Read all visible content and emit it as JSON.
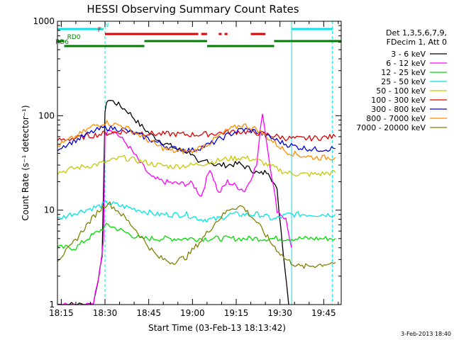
{
  "chart_data": {
    "type": "line",
    "title": "HESSI Observing Summary Count Rates",
    "xlabel": "Start Time (03-Feb-13 18:13:42)",
    "ylabel": "Count Rate (s⁻¹ detector⁻¹)",
    "yscale": "log",
    "ylim": [
      1,
      1000
    ],
    "xlim": [
      "18:13:42",
      "19:51:00"
    ],
    "x_ticks": [
      "18:15",
      "18:30",
      "18:45",
      "19:00",
      "19:15",
      "19:30",
      "19:45"
    ],
    "y_ticks": [
      "1",
      "10",
      "100",
      "1000"
    ],
    "legend_header": [
      "Det 1,3,5,6,7,9,",
      "FDecim 1, Att 0"
    ],
    "legend_placement": "right",
    "footer_date": "3-Feb-2013 18:40",
    "grid": false,
    "vertical_markers": [
      {
        "time": "18:13:42",
        "style": "solid",
        "color": "#00e5e5"
      },
      {
        "time": "18:30:00",
        "style": "dashed",
        "color": "#00e5e5"
      },
      {
        "time": "19:34:00",
        "style": "solid",
        "color": "#00e5e5"
      },
      {
        "time": "19:48:00",
        "style": "dashed",
        "color": "#00e5e5"
      }
    ],
    "flag_bars": [
      {
        "name": "N",
        "color": "#00e5e5",
        "segments": [
          [
            "18:13:42",
            "18:29:30"
          ],
          [
            "19:34:00",
            "19:48:00"
          ]
        ],
        "label_time": "18:29:40"
      },
      {
        "name": "F",
        "color": "#e00000",
        "segments": [
          [
            "18:30:00",
            "19:02:00"
          ],
          [
            "19:03:00",
            "19:05:00"
          ],
          [
            "19:09:00",
            "19:10:00"
          ],
          [
            "19:11:00",
            "19:12:00"
          ],
          [
            "19:20:00",
            "19:25:00"
          ]
        ],
        "label_time": "18:27:30"
      },
      {
        "name": "RD0",
        "color": "#007f00",
        "segments": [
          [
            "18:13:42",
            "18:16:00"
          ],
          [
            "18:43:30",
            "19:05:00"
          ],
          [
            "19:28:00",
            "19:51:00"
          ]
        ],
        "label_time": "18:17:00"
      },
      {
        "name": "RD6",
        "color": "#007f00",
        "segments": [
          [
            "18:16:00",
            "18:43:30"
          ],
          [
            "19:05:00",
            "19:28:00"
          ]
        ],
        "label_time": "18:13:00"
      }
    ],
    "series": [
      {
        "name": "3 - 6 keV",
        "color": "#000000",
        "points": [
          [
            "18:13:42",
            1
          ],
          [
            "18:26:00",
            1
          ],
          [
            "18:27:00",
            1.5
          ],
          [
            "18:29:00",
            3
          ],
          [
            "18:30:00",
            110
          ],
          [
            "18:31:00",
            150
          ],
          [
            "18:34:00",
            135
          ],
          [
            "18:38:00",
            110
          ],
          [
            "18:42:00",
            80
          ],
          [
            "18:46:00",
            62
          ],
          [
            "18:50:00",
            52
          ],
          [
            "18:55:00",
            44
          ],
          [
            "19:00:00",
            40
          ],
          [
            "19:02:00",
            30
          ],
          [
            "19:05:00",
            34
          ],
          [
            "19:08:00",
            30
          ],
          [
            "19:12:00",
            30
          ],
          [
            "19:16:00",
            31
          ],
          [
            "19:20:00",
            27
          ],
          [
            "19:23:00",
            24
          ],
          [
            "19:26:00",
            26
          ],
          [
            "19:29:00",
            16
          ],
          [
            "19:31:00",
            4
          ],
          [
            "19:33:00",
            1
          ]
        ]
      },
      {
        "name": "6 - 12 keV",
        "color": "#ff00ff",
        "points": [
          [
            "18:13:42",
            1
          ],
          [
            "18:26:00",
            1
          ],
          [
            "18:28:00",
            2
          ],
          [
            "18:29:30",
            5
          ],
          [
            "18:30:00",
            60
          ],
          [
            "18:31:00",
            75
          ],
          [
            "18:34:00",
            65
          ],
          [
            "18:38:00",
            48
          ],
          [
            "18:42:00",
            32
          ],
          [
            "18:46:00",
            22
          ],
          [
            "18:50:00",
            20
          ],
          [
            "18:55:00",
            19
          ],
          [
            "19:00:00",
            19
          ],
          [
            "19:03:00",
            14
          ],
          [
            "19:06:00",
            28
          ],
          [
            "19:09:00",
            15
          ],
          [
            "19:12:00",
            20
          ],
          [
            "19:15:00",
            18
          ],
          [
            "19:18:00",
            16
          ],
          [
            "19:22:00",
            30
          ],
          [
            "19:24:00",
            110
          ],
          [
            "19:26:00",
            40
          ],
          [
            "19:29:00",
            10
          ],
          [
            "19:32:00",
            8
          ],
          [
            "19:34:00",
            4
          ]
        ]
      },
      {
        "name": "12 - 25 keV",
        "color": "#00dd00",
        "points": [
          [
            "18:13:42",
            4
          ],
          [
            "18:20:00",
            4
          ],
          [
            "18:24:00",
            5
          ],
          [
            "18:28:00",
            6
          ],
          [
            "18:31:00",
            7
          ],
          [
            "18:36:00",
            6
          ],
          [
            "18:42:00",
            5
          ],
          [
            "18:48:00",
            5
          ],
          [
            "18:55:00",
            5
          ],
          [
            "19:05:00",
            5
          ],
          [
            "19:10:00",
            5
          ],
          [
            "19:20:00",
            5
          ],
          [
            "19:30:00",
            5
          ],
          [
            "19:38:00",
            5
          ],
          [
            "19:45:00",
            5
          ],
          [
            "19:49:00",
            5
          ]
        ]
      },
      {
        "name": "25 - 50 keV",
        "color": "#00e5e5",
        "points": [
          [
            "18:13:42",
            8
          ],
          [
            "18:18:00",
            9
          ],
          [
            "18:23:00",
            10
          ],
          [
            "18:28:00",
            11
          ],
          [
            "18:31:00",
            12
          ],
          [
            "18:36:00",
            11
          ],
          [
            "18:42:00",
            10
          ],
          [
            "18:48:00",
            9
          ],
          [
            "18:53:00",
            9
          ],
          [
            "18:58:00",
            9
          ],
          [
            "19:03:00",
            8
          ],
          [
            "19:08:00",
            8
          ],
          [
            "19:13:00",
            9
          ],
          [
            "19:18:00",
            9
          ],
          [
            "19:23:00",
            9
          ],
          [
            "19:28:00",
            8
          ],
          [
            "19:33:00",
            9
          ],
          [
            "19:40:00",
            9
          ],
          [
            "19:49:00",
            9
          ]
        ]
      },
      {
        "name": "50 - 100 keV",
        "color": "#c8c800",
        "points": [
          [
            "18:13:42",
            25
          ],
          [
            "18:20:00",
            28
          ],
          [
            "18:26:00",
            30
          ],
          [
            "18:30:00",
            32
          ],
          [
            "18:36:00",
            36
          ],
          [
            "18:42:00",
            33
          ],
          [
            "18:48:00",
            30
          ],
          [
            "18:53:00",
            29
          ],
          [
            "19:00:00",
            30
          ],
          [
            "19:06:00",
            32
          ],
          [
            "19:12:00",
            35
          ],
          [
            "19:17:00",
            36
          ],
          [
            "19:22:00",
            34
          ],
          [
            "19:27:00",
            29
          ],
          [
            "19:32:00",
            25
          ],
          [
            "19:37:00",
            24
          ],
          [
            "19:42:00",
            24
          ],
          [
            "19:49:00",
            25
          ]
        ]
      },
      {
        "name": "100 - 300 keV",
        "color": "#e00000",
        "points": [
          [
            "18:13:42",
            55
          ],
          [
            "18:20:00",
            58
          ],
          [
            "18:26:00",
            62
          ],
          [
            "18:30:00",
            65
          ],
          [
            "18:36:00",
            68
          ],
          [
            "18:42:00",
            66
          ],
          [
            "18:48:00",
            64
          ],
          [
            "18:53:00",
            64
          ],
          [
            "19:00:00",
            63
          ],
          [
            "19:06:00",
            64
          ],
          [
            "19:12:00",
            67
          ],
          [
            "19:17:00",
            68
          ],
          [
            "19:22:00",
            66
          ],
          [
            "19:27:00",
            62
          ],
          [
            "19:32:00",
            58
          ],
          [
            "19:37:00",
            57
          ],
          [
            "19:42:00",
            58
          ],
          [
            "19:49:00",
            60
          ]
        ]
      },
      {
        "name": "300 - 800 keV",
        "color": "#0000e0",
        "points": [
          [
            "18:13:42",
            45
          ],
          [
            "18:20:00",
            55
          ],
          [
            "18:26:00",
            68
          ],
          [
            "18:30:00",
            75
          ],
          [
            "18:36:00",
            72
          ],
          [
            "18:42:00",
            62
          ],
          [
            "18:48:00",
            52
          ],
          [
            "18:53:00",
            45
          ],
          [
            "19:00:00",
            43
          ],
          [
            "19:06:00",
            50
          ],
          [
            "19:12:00",
            62
          ],
          [
            "19:17:00",
            72
          ],
          [
            "19:22:00",
            68
          ],
          [
            "19:27:00",
            58
          ],
          [
            "19:32:00",
            50
          ],
          [
            "19:37:00",
            46
          ],
          [
            "19:42:00",
            44
          ],
          [
            "19:49:00",
            45
          ]
        ]
      },
      {
        "name": "800 - 7000 keV",
        "color": "#ff8c00",
        "points": [
          [
            "18:13:42",
            48
          ],
          [
            "18:20:00",
            60
          ],
          [
            "18:26:00",
            78
          ],
          [
            "18:30:00",
            85
          ],
          [
            "18:36:00",
            78
          ],
          [
            "18:42:00",
            62
          ],
          [
            "18:48:00",
            48
          ],
          [
            "18:53:00",
            42
          ],
          [
            "19:00:00",
            42
          ],
          [
            "19:06:00",
            52
          ],
          [
            "19:12:00",
            70
          ],
          [
            "19:17:00",
            80
          ],
          [
            "19:22:00",
            72
          ],
          [
            "19:27:00",
            55
          ],
          [
            "19:32:00",
            42
          ],
          [
            "19:37:00",
            38
          ],
          [
            "19:42:00",
            36
          ],
          [
            "19:49:00",
            36
          ]
        ]
      },
      {
        "name": "7000 - 20000 keV",
        "color": "#808000",
        "points": [
          [
            "18:13:42",
            3
          ],
          [
            "18:18:00",
            4
          ],
          [
            "18:23:00",
            6.5
          ],
          [
            "18:28:00",
            10
          ],
          [
            "18:31:00",
            12
          ],
          [
            "18:35:00",
            9.5
          ],
          [
            "18:40:00",
            6.5
          ],
          [
            "18:44:00",
            4.5
          ],
          [
            "18:48:00",
            3.2
          ],
          [
            "18:53:00",
            2.8
          ],
          [
            "18:58:00",
            3.2
          ],
          [
            "19:03:00",
            4.8
          ],
          [
            "19:08:00",
            7.5
          ],
          [
            "19:13:00",
            10.5
          ],
          [
            "19:17:00",
            11
          ],
          [
            "19:22:00",
            7.5
          ],
          [
            "19:27:00",
            4.5
          ],
          [
            "19:32:00",
            3
          ],
          [
            "19:37:00",
            2.5
          ],
          [
            "19:42:00",
            2.6
          ],
          [
            "19:49:00",
            2.8
          ]
        ]
      }
    ]
  }
}
